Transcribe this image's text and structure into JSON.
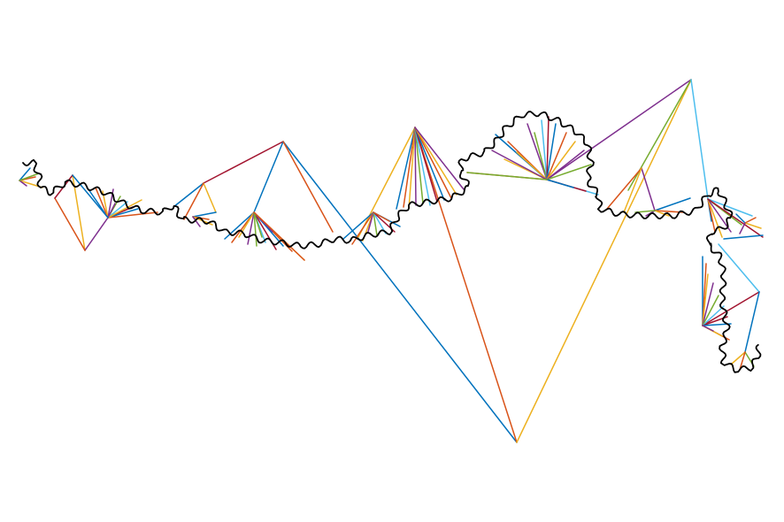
{
  "figure": {
    "description_text": "",
    "palette": {
      "blue": "#0072BD",
      "orange": "#D95319",
      "yellow": "#EDB120",
      "purple": "#7E2F8E",
      "green": "#77AC30",
      "cyan": "#4DBEEE",
      "maroon": "#A2142F",
      "curve": "#000000"
    },
    "icons": []
  }
}
